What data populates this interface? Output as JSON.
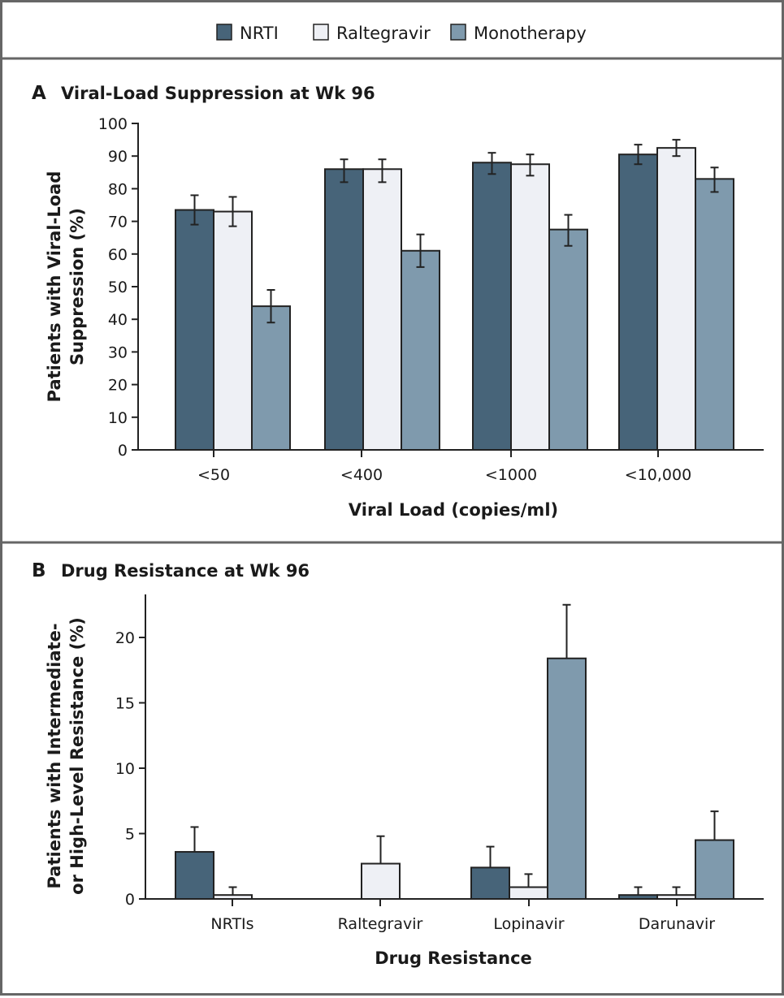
{
  "colors": {
    "nrti": "#476479",
    "raltegravir": "#eef0f5",
    "monotherapy": "#7f9aad"
  },
  "legend": [
    {
      "label": "NRTI",
      "color": "#476479"
    },
    {
      "label": "Raltegravir",
      "color": "#eef0f5"
    },
    {
      "label": "Monotherapy",
      "color": "#7f9aad"
    }
  ],
  "chart_data": [
    {
      "type": "bar",
      "panel_letter": "A",
      "title": "Viral-Load Suppression at Wk 96",
      "xlabel": "Viral Load (copies/ml)",
      "ylabel_lines": [
        "Patients with Viral-Load",
        "Suppression (%)"
      ],
      "ylim": [
        0,
        100
      ],
      "yticks": [
        0,
        10,
        20,
        30,
        40,
        50,
        60,
        70,
        80,
        90,
        100
      ],
      "categories": [
        "<50",
        "<400",
        "<1000",
        "<10,000"
      ],
      "series": [
        {
          "name": "NRTI",
          "values": [
            73.5,
            86,
            88,
            90.5
          ],
          "upper": [
            78,
            89,
            91,
            93.5
          ],
          "lower": [
            69,
            82,
            84.5,
            87.5
          ]
        },
        {
          "name": "Raltegravir",
          "values": [
            73,
            86,
            87.5,
            92.5
          ],
          "upper": [
            77.5,
            89,
            90.5,
            95
          ],
          "lower": [
            68.5,
            82,
            84,
            90
          ]
        },
        {
          "name": "Monotherapy",
          "values": [
            44,
            61,
            67.5,
            83
          ],
          "upper": [
            49,
            66,
            72,
            86.5
          ],
          "lower": [
            39,
            56,
            62.5,
            79
          ]
        }
      ]
    },
    {
      "type": "bar",
      "panel_letter": "B",
      "title": "Drug Resistance at Wk 96",
      "xlabel": "Drug Resistance",
      "ylabel_lines": [
        "Patients with Intermediate-",
        "or High-Level Resistance (%)"
      ],
      "ylim": [
        0,
        23
      ],
      "yticks": [
        0,
        5,
        10,
        15,
        20
      ],
      "categories": [
        "NRTIs",
        "Raltegravir",
        "Lopinavir",
        "Darunavir"
      ],
      "series": [
        {
          "name": "NRTI",
          "values": [
            3.6,
            0,
            2.4,
            0.3
          ],
          "upper": [
            5.5,
            null,
            4.0,
            0.9
          ]
        },
        {
          "name": "Raltegravir",
          "values": [
            0.3,
            2.7,
            0.9,
            0.3
          ],
          "upper": [
            0.9,
            4.8,
            1.9,
            0.9
          ]
        },
        {
          "name": "Monotherapy",
          "values": [
            0,
            0,
            18.4,
            4.5
          ],
          "upper": [
            null,
            null,
            22.5,
            6.7
          ]
        }
      ]
    }
  ]
}
